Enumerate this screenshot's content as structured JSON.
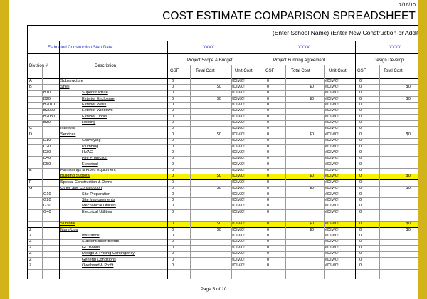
{
  "header": {
    "date": "7/16/10",
    "title": "COST ESTIMATE COMPARISON SPREADSHEET",
    "school_line": "(Enter School Name) (Enter New Construction or Additio"
  },
  "start_row": {
    "label": "Estimated Construction Start Date:",
    "values": [
      "XXXX",
      "XXXX",
      "XXXX"
    ]
  },
  "columns": {
    "division": "Division #",
    "description": "Description",
    "groups": [
      "Project Scope & Budget",
      "Project Funding Agreement",
      "Design Develop"
    ],
    "sub": [
      "GSF",
      "Total Cost",
      "Unit Cost",
      "GSF",
      "Total Cost",
      "Unit Cost",
      "GSF",
      "Total Cost"
    ]
  },
  "rows": [
    {
      "a": "A",
      "b": "",
      "desc": "Substructure",
      "g1": "0",
      "t1": "",
      "u1": "#DIV/0!",
      "g2": "0",
      "t2": "",
      "u2": "#DIV/0!",
      "g3": "0",
      "t3": "",
      "y": false,
      "ul": true,
      "indent": 0
    },
    {
      "a": "B",
      "b": "",
      "desc": "Shell",
      "g1": "0",
      "t1": "$0",
      "u1": "#DIV/0!",
      "g2": "0",
      "t2": "$0",
      "u2": "#DIV/0!",
      "g3": "0",
      "t3": "$0",
      "y": false,
      "ul": true,
      "indent": 0
    },
    {
      "a": "",
      "b": "B10",
      "desc": "Superstructure",
      "g1": "0",
      "t1": "",
      "u1": "#DIV/0!",
      "g2": "0",
      "t2": "",
      "u2": "#DIV/0!",
      "g3": "0",
      "t3": "",
      "y": false,
      "ul": true,
      "indent": 1
    },
    {
      "a": "",
      "b": "B20",
      "desc": "Exterior Enclosure",
      "g1": "0",
      "t1": "$0",
      "u1": "#DIV/0!",
      "g2": "0",
      "t2": "$0",
      "u2": "#DIV/0!",
      "g3": "0",
      "t3": "$0",
      "y": false,
      "ul": true,
      "indent": 1
    },
    {
      "a": "",
      "b": "B2010",
      "desc": "Exterior Walls",
      "g1": "0",
      "t1": "",
      "u1": "#DIV/0!",
      "g2": "0",
      "t2": "",
      "u2": "#DIV/0!",
      "g3": "0",
      "t3": "",
      "y": false,
      "ul": true,
      "indent": 2
    },
    {
      "a": "",
      "b": "B2020",
      "desc": "Exterior Windows",
      "g1": "0",
      "t1": "",
      "u1": "#DIV/0!",
      "g2": "0",
      "t2": "",
      "u2": "#DIV/0!",
      "g3": "0",
      "t3": "",
      "y": false,
      "ul": true,
      "indent": 2
    },
    {
      "a": "",
      "b": "B2030",
      "desc": "Exterior Doors",
      "g1": "0",
      "t1": "",
      "u1": "#DIV/0!",
      "g2": "0",
      "t2": "",
      "u2": "#DIV/0!",
      "g3": "0",
      "t3": "",
      "y": false,
      "ul": true,
      "indent": 2
    },
    {
      "a": "",
      "b": "B30",
      "desc": "Roofing",
      "g1": "0",
      "t1": "",
      "u1": "#DIV/0!",
      "g2": "0",
      "t2": "",
      "u2": "#DIV/0!",
      "g3": "0",
      "t3": "",
      "y": false,
      "ul": true,
      "indent": 1
    },
    {
      "a": "C",
      "b": "",
      "desc": "Interiors",
      "g1": "0",
      "t1": "",
      "u1": "#DIV/0!",
      "g2": "0",
      "t2": "",
      "u2": "#DIV/0!",
      "g3": "0",
      "t3": "",
      "y": false,
      "ul": true,
      "indent": 0
    },
    {
      "a": "D",
      "b": "",
      "desc": "Services",
      "g1": "0",
      "t1": "$0",
      "u1": "#DIV/0!",
      "g2": "0",
      "t2": "$0",
      "u2": "#DIV/0!",
      "g3": "0",
      "t3": "$0",
      "y": false,
      "ul": true,
      "indent": 0
    },
    {
      "a": "",
      "b": "D10",
      "desc": "Conveying",
      "g1": "0",
      "t1": "",
      "u1": "#DIV/0!",
      "g2": "0",
      "t2": "",
      "u2": "#DIV/0!",
      "g3": "0",
      "t3": "",
      "y": false,
      "ul": true,
      "indent": 1
    },
    {
      "a": "",
      "b": "D20",
      "desc": "Plumbing",
      "g1": "0",
      "t1": "",
      "u1": "#DIV/0!",
      "g2": "0",
      "t2": "",
      "u2": "#DIV/0!",
      "g3": "0",
      "t3": "",
      "y": false,
      "ul": true,
      "indent": 1
    },
    {
      "a": "",
      "b": "D30",
      "desc": "HVAC",
      "g1": "0",
      "t1": "",
      "u1": "#DIV/0!",
      "g2": "0",
      "t2": "",
      "u2": "#DIV/0!",
      "g3": "0",
      "t3": "",
      "y": false,
      "ul": true,
      "indent": 1
    },
    {
      "a": "",
      "b": "D40",
      "desc": "Fire Protection",
      "g1": "0",
      "t1": "",
      "u1": "#DIV/0!",
      "g2": "0",
      "t2": "",
      "u2": "#DIV/0!",
      "g3": "0",
      "t3": "",
      "y": false,
      "ul": true,
      "indent": 1
    },
    {
      "a": "",
      "b": "D50",
      "desc": "Electrical",
      "g1": "0",
      "t1": "",
      "u1": "#DIV/0!",
      "g2": "0",
      "t2": "",
      "u2": "#DIV/0!",
      "g3": "0",
      "t3": "",
      "y": false,
      "ul": true,
      "indent": 1
    },
    {
      "a": "E",
      "b": "",
      "desc": "Furnishings & Fixed Equipment",
      "g1": "0",
      "t1": "",
      "u1": "#DIV/0!",
      "g2": "0",
      "t2": "",
      "u2": "#DIV/0!",
      "g3": "0",
      "t3": "",
      "y": false,
      "ul": true,
      "indent": 0
    },
    {
      "a": "",
      "b": "",
      "desc": "Building Subtotal",
      "g1": "0",
      "t1": "$0",
      "u1": "#DIV/0!",
      "g2": "0",
      "t2": "$0",
      "u2": "#DIV/0!",
      "g3": "0",
      "t3": "$0",
      "y": true,
      "ul": true,
      "indent": 0
    },
    {
      "a": "F",
      "b": "",
      "desc": "Special Construction & Demo",
      "g1": "0",
      "t1": "",
      "u1": "#DIV/0!",
      "g2": "0",
      "t2": "",
      "u2": "#DIV/0!",
      "g3": "0",
      "t3": "",
      "y": false,
      "ul": true,
      "indent": 0
    },
    {
      "a": "G",
      "b": "",
      "desc": "Other Site Construction",
      "g1": "0",
      "t1": "$0",
      "u1": "#DIV/0!",
      "g2": "0",
      "t2": "$0",
      "u2": "#DIV/0!",
      "g3": "0",
      "t3": "$0",
      "y": false,
      "ul": true,
      "indent": 0
    },
    {
      "a": "",
      "b": "G10",
      "desc": "Site Preparation",
      "g1": "0",
      "t1": "",
      "u1": "#DIV/0!",
      "g2": "0",
      "t2": "",
      "u2": "#DIV/0!",
      "g3": "0",
      "t3": "",
      "y": false,
      "ul": true,
      "indent": 1
    },
    {
      "a": "",
      "b": "G20",
      "desc": "Site Improvements",
      "g1": "0",
      "t1": "",
      "u1": "#DIV/0!",
      "g2": "0",
      "t2": "",
      "u2": "#DIV/0!",
      "g3": "0",
      "t3": "",
      "y": false,
      "ul": true,
      "indent": 1
    },
    {
      "a": "",
      "b": "G30",
      "desc": "Mechanical Utilities",
      "g1": "0",
      "t1": "",
      "u1": "#DIV/0!",
      "g2": "0",
      "t2": "",
      "u2": "#DIV/0!",
      "g3": "0",
      "t3": "",
      "y": false,
      "ul": true,
      "indent": 1
    },
    {
      "a": "",
      "b": "G40",
      "desc": "Electrical Utilities",
      "g1": "0",
      "t1": "",
      "u1": "#DIV/0!",
      "g2": "0",
      "t2": "",
      "u2": "#DIV/0!",
      "g3": "0",
      "t3": "",
      "y": false,
      "ul": true,
      "indent": 1
    },
    {
      "a": "",
      "b": "",
      "desc": "",
      "g1": "",
      "t1": "",
      "u1": "",
      "g2": "",
      "t2": "",
      "u2": "",
      "g3": "",
      "t3": "",
      "y": false,
      "ul": false,
      "indent": 0
    },
    {
      "a": "",
      "b": "",
      "desc": "Subtotal",
      "g1": "0",
      "t1": "$0",
      "u1": "#DIV/0!",
      "g2": "0",
      "t2": "$0",
      "u2": "#DIV/0!",
      "g3": "0",
      "t3": "$0",
      "y": true,
      "ul": true,
      "indent": 0
    },
    {
      "a": "Z",
      "b": "",
      "desc": "Mark-Ups",
      "g1": "0",
      "t1": "$0",
      "u1": "#DIV/0!",
      "g2": "0",
      "t2": "$0",
      "u2": "#DIV/0!",
      "g3": "0",
      "t3": "$0",
      "y": false,
      "ul": true,
      "indent": 0
    },
    {
      "a": "Z",
      "b": "",
      "desc": "Insurance",
      "g1": "0",
      "t1": "",
      "u1": "#DIV/0!",
      "g2": "0",
      "t2": "",
      "u2": "#DIV/0!",
      "g3": "0",
      "t3": "",
      "y": false,
      "ul": true,
      "indent": 1
    },
    {
      "a": "Z",
      "b": "",
      "desc": "Subcontractor Bonds",
      "g1": "0",
      "t1": "",
      "u1": "#DIV/0!",
      "g2": "0",
      "t2": "",
      "u2": "#DIV/0!",
      "g3": "0",
      "t3": "",
      "y": false,
      "ul": true,
      "indent": 1
    },
    {
      "a": "Z",
      "b": "",
      "desc": "GC Bonds",
      "g1": "0",
      "t1": "",
      "u1": "#DIV/0!",
      "g2": "0",
      "t2": "",
      "u2": "#DIV/0!",
      "g3": "0",
      "t3": "",
      "y": false,
      "ul": true,
      "indent": 1
    },
    {
      "a": "Z",
      "b": "",
      "desc": "Design & Pricing Contingency",
      "g1": "0",
      "t1": "",
      "u1": "#DIV/0!",
      "g2": "0",
      "t2": "",
      "u2": "#DIV/0!",
      "g3": "0",
      "t3": "",
      "y": false,
      "ul": true,
      "indent": 1
    },
    {
      "a": "Z",
      "b": "",
      "desc": "General Conditions",
      "g1": "0",
      "t1": "",
      "u1": "#DIV/0!",
      "g2": "0",
      "t2": "",
      "u2": "#DIV/0!",
      "g3": "0",
      "t3": "",
      "y": false,
      "ul": true,
      "indent": 1
    },
    {
      "a": "Z",
      "b": "",
      "desc": "Overhead & Profit",
      "g1": "0",
      "t1": "",
      "u1": "#DIV/0!",
      "g2": "0",
      "t2": "",
      "u2": "#DIV/0!",
      "g3": "0",
      "t3": "",
      "y": false,
      "ul": true,
      "indent": 1
    }
  ],
  "footer": "Page 5 of 10"
}
